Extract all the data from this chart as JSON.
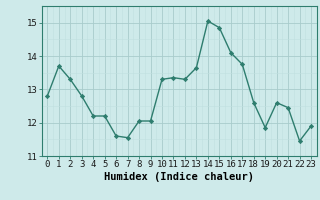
{
  "x": [
    0,
    1,
    2,
    3,
    4,
    5,
    6,
    7,
    8,
    9,
    10,
    11,
    12,
    13,
    14,
    15,
    16,
    17,
    18,
    19,
    20,
    21,
    22,
    23
  ],
  "y": [
    12.8,
    13.7,
    13.3,
    12.8,
    12.2,
    12.2,
    11.6,
    11.55,
    12.05,
    12.05,
    13.3,
    13.35,
    13.3,
    13.65,
    15.05,
    14.85,
    14.1,
    13.75,
    12.6,
    11.85,
    12.6,
    12.45,
    11.45,
    11.9
  ],
  "line_color": "#2e7d6e",
  "marker": "D",
  "marker_size": 2.2,
  "bg_color": "#ceeaea",
  "grid_color_major": "#a8cccc",
  "grid_color_minor": "#c0e0e0",
  "xlabel": "Humidex (Indice chaleur)",
  "ylim": [
    11,
    15.5
  ],
  "xlim": [
    -0.5,
    23.5
  ],
  "yticks": [
    11,
    12,
    13,
    14,
    15
  ],
  "xticks": [
    0,
    1,
    2,
    3,
    4,
    5,
    6,
    7,
    8,
    9,
    10,
    11,
    12,
    13,
    14,
    15,
    16,
    17,
    18,
    19,
    20,
    21,
    22,
    23
  ],
  "tick_fontsize": 6.5,
  "xlabel_fontsize": 7.5,
  "line_width": 1.0
}
